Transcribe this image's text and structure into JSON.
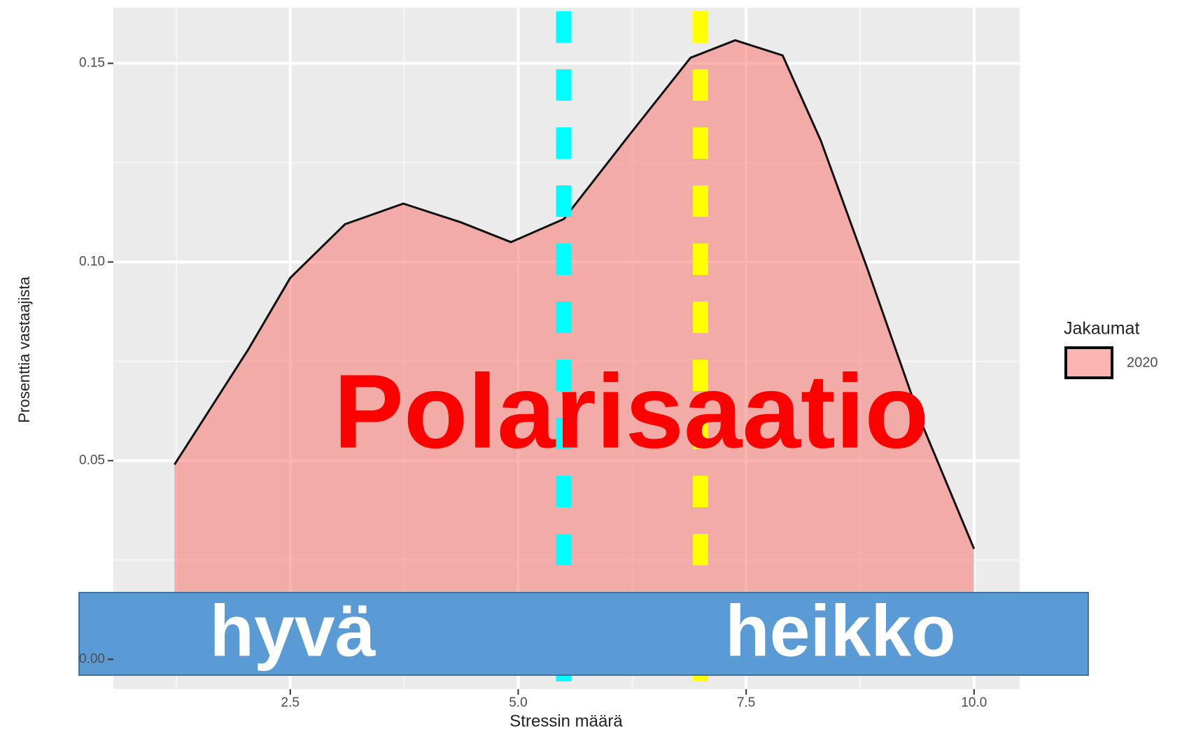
{
  "chart_data": {
    "type": "density",
    "x_label": "Stressin määrä",
    "y_label": "Prosenttia vastaajista",
    "x": [
      1.23,
      2.04,
      2.5,
      3.1,
      3.74,
      4.37,
      4.92,
      5.5,
      6.22,
      6.89,
      7.38,
      7.9,
      8.32,
      8.83,
      9.42,
      10.0
    ],
    "series": [
      {
        "name": "2020",
        "color": "#f8766d",
        "values": [
          0.049,
          0.078,
          0.096,
          0.1095,
          0.1147,
          0.11,
          0.105,
          0.1108,
          0.132,
          0.1514,
          0.1558,
          0.152,
          0.1305,
          0.0983,
          0.0597,
          0.0278
        ]
      }
    ],
    "xlim": [
      0.56,
      10.5
    ],
    "ylim": [
      -0.0075,
      0.164
    ],
    "xticks": [
      2.5,
      {
        "value": 5,
        "label": "5.0"
      },
      7.5,
      {
        "value": 10,
        "label": "10.0"
      }
    ],
    "yticks": [
      {
        "value": 0,
        "label": "0.00"
      },
      0.05,
      {
        "value": 0.1,
        "label": "0.10"
      },
      0.15
    ],
    "grid": true,
    "legend_title": "Jakaumat",
    "vlines": [
      {
        "x": 5.5,
        "color": "#00ffff"
      },
      {
        "x": 7.0,
        "color": "#ffff00"
      }
    ],
    "annotations": {
      "title": "Polarisaatio",
      "left": "hyvä",
      "right": "heikko"
    }
  }
}
